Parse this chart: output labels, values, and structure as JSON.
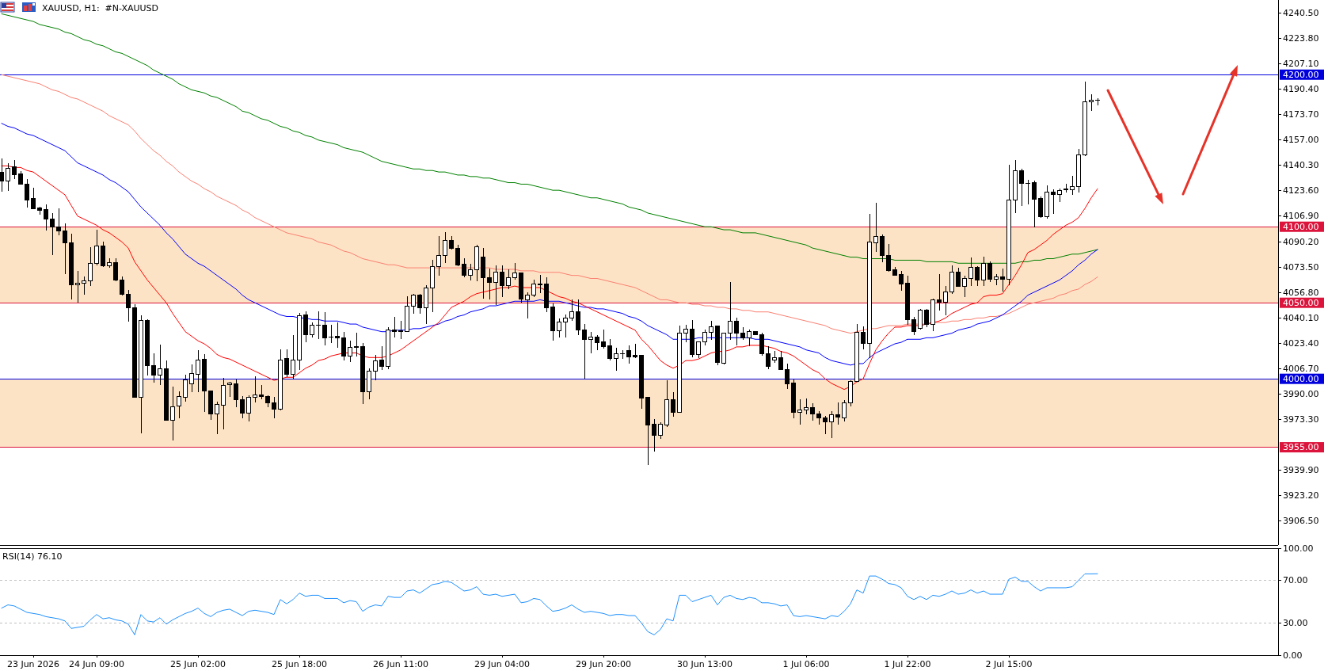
{
  "chart_data": [
    {
      "type": "candlestick",
      "title": "XAUUSD, H1:  #N-XAUUSD",
      "categories": [
        null,
        null,
        null,
        null,
        null,
        null,
        null,
        null,
        null,
        null,
        null,
        null,
        null,
        null,
        null,
        null,
        null,
        null,
        null,
        null,
        null,
        null,
        null,
        null,
        null,
        null,
        null,
        null,
        null,
        null,
        null,
        null,
        null,
        null,
        null,
        null,
        null,
        null,
        null,
        null,
        null,
        null,
        null,
        null,
        null,
        null,
        null,
        null,
        null,
        null,
        null,
        null,
        null,
        null,
        null,
        null,
        null,
        null,
        null,
        null,
        null,
        null,
        null,
        null,
        null,
        null,
        null,
        null,
        null,
        null,
        null,
        null,
        null,
        null,
        null,
        null,
        null,
        null,
        null,
        null,
        null,
        null,
        null,
        null,
        null,
        null,
        null,
        null,
        null,
        null,
        null,
        null,
        null,
        null,
        null,
        null,
        null,
        null,
        null,
        null,
        null,
        null,
        null,
        null,
        null,
        null,
        null,
        null,
        null,
        null,
        null,
        null,
        null,
        null,
        null,
        null,
        null,
        null,
        null,
        null,
        null,
        null,
        null,
        null,
        null,
        null,
        null,
        null,
        null,
        null,
        null,
        null,
        null,
        null,
        null,
        null,
        null,
        null,
        null,
        null,
        null,
        null,
        null,
        null,
        null,
        null,
        null,
        null,
        null,
        null,
        null,
        null,
        null,
        null,
        null,
        null,
        null,
        null,
        null,
        null,
        null,
        null,
        null,
        null,
        null,
        null,
        null,
        null,
        null,
        null,
        null,
        null,
        null,
        null
      ],
      "ylim": [
        3890.7,
        4249.1
      ],
      "yticks": [
        {
          "value": 4240.5,
          "label": "4240.50"
        },
        {
          "value": 4223.8,
          "label": "4223.80"
        },
        {
          "value": 4207.1,
          "label": "4207.10"
        },
        {
          "value": 4190.4,
          "label": "4190.40"
        },
        {
          "value": 4173.7,
          "label": "4173.70"
        },
        {
          "value": 4157,
          "label": "4157.00"
        },
        {
          "value": 4140.3,
          "label": "4140.30"
        },
        {
          "value": 4123.6,
          "label": "4123.60"
        },
        {
          "value": 4106.9,
          "label": "4106.90"
        },
        {
          "value": 4090.2,
          "label": "4090.20"
        },
        {
          "value": 4073.5,
          "label": "4073.50"
        },
        {
          "value": 4056.8,
          "label": "4056.80"
        },
        {
          "value": 4040.1,
          "label": "4040.10"
        },
        {
          "value": 4023.4,
          "label": "4023.40"
        },
        {
          "value": 4006.7,
          "label": "4006.70"
        },
        {
          "value": 3990,
          "label": "3990.00"
        },
        {
          "value": 3973.3,
          "label": "3973.30"
        },
        {
          "value": 3939.9,
          "label": "3939.90"
        },
        {
          "value": 3923.2,
          "label": "3923.20"
        },
        {
          "value": 3906.5,
          "label": "3906.50"
        }
      ],
      "bands": [
        {
          "axis": "y",
          "from": 4050,
          "to": 4100,
          "color": "#fde3c5"
        },
        {
          "axis": "y",
          "from": 3955,
          "to": 4000,
          "color": "#fde3c5"
        }
      ],
      "ref_lines": [
        {
          "axis": "y",
          "value": 4200,
          "label": "4200.00",
          "color": "#0000dd"
        },
        {
          "axis": "y",
          "value": 4100,
          "label": "4100.00",
          "color": "#dc143c"
        },
        {
          "axis": "y",
          "value": 4050,
          "label": "4050.00",
          "color": "#dc143c"
        },
        {
          "axis": "y",
          "value": 4000,
          "label": "4000.00",
          "color": "#0000dd"
        },
        {
          "axis": "y",
          "value": 3955,
          "label": "3955.00",
          "color": "#dc143c"
        }
      ],
      "series": [
        {
          "type": "line",
          "color": "#008000",
          "values": [
            4240,
            4239,
            4238,
            4237,
            4236,
            4235,
            4233,
            4232,
            4231,
            4230,
            4228,
            4227,
            4225,
            4223,
            4222,
            4220,
            4219,
            4217,
            4215,
            4214,
            4212,
            4210,
            4208,
            4206,
            4203,
            4201,
            4199,
            4197,
            4194,
            4192,
            4190,
            4189,
            4188,
            4186,
            4185,
            4183,
            4181,
            4179,
            4176,
            4175,
            4173,
            4171,
            4170,
            4168,
            4166,
            4165,
            4163,
            4162,
            4160,
            4159,
            4157,
            4156,
            4155,
            4154,
            4152,
            4151,
            4150,
            4149,
            4147,
            4145,
            4143,
            4142,
            4141,
            4140,
            4139,
            4138,
            4138,
            4137,
            4137,
            4136,
            4136,
            4135,
            4134,
            4134,
            4133,
            4133,
            4132,
            4132,
            4131,
            4130,
            4129,
            4129,
            4128,
            4128,
            4127,
            4126,
            4125,
            4124,
            4124,
            4123,
            4122,
            4121,
            4120,
            4119,
            4119,
            4118,
            4117,
            4116,
            4115,
            4113,
            4112,
            4111,
            4109,
            4108,
            4107,
            4106,
            4105,
            4104,
            4103,
            4102,
            4101,
            4100,
            4100,
            4099,
            4098,
            4098,
            4097,
            4096,
            4096,
            4096,
            4095,
            4094,
            4093,
            4092,
            4091,
            4090,
            4089,
            4088,
            4086,
            4085,
            4084,
            4083,
            4082,
            4081,
            4080,
            4080,
            4079,
            4079,
            4079,
            4079,
            4079,
            4078,
            4078,
            4078,
            4078,
            4078,
            4077,
            4077,
            4077,
            4077,
            4077,
            4076,
            4076,
            4076,
            4076,
            4076,
            4076,
            4076,
            4076,
            4076,
            4076,
            4077,
            4077,
            4078,
            4078,
            4079,
            4079,
            4080,
            4081,
            4082,
            4082,
            4083,
            4084,
            4085
          ]
        },
        {
          "type": "line",
          "color": "#fa8072",
          "values": [
            4200,
            4199,
            4198,
            4197,
            4196,
            4195,
            4194,
            4192,
            4190,
            4189,
            4187,
            4185,
            4184,
            4182,
            4180,
            4178,
            4176,
            4173,
            4171,
            4169,
            4167,
            4163,
            4158,
            4154,
            4150,
            4147,
            4143,
            4140,
            4136,
            4133,
            4130,
            4128,
            4125,
            4123,
            4120,
            4118,
            4116,
            4114,
            4111,
            4109,
            4106,
            4104,
            4102,
            4100,
            4098,
            4096,
            4095,
            4094,
            4093,
            4092,
            4090,
            4089,
            4088,
            4086,
            4084,
            4083,
            4081,
            4079,
            4078,
            4077,
            4076,
            4075,
            4075,
            4074,
            4073,
            4073,
            4073,
            4073,
            4073,
            4073,
            4073,
            4073,
            4073,
            4073,
            4073,
            4073,
            4073,
            4073,
            4072,
            4072,
            4072,
            4072,
            4071,
            4071,
            4071,
            4070,
            4070,
            4070,
            4070,
            4069,
            4068,
            4068,
            4067,
            4066,
            4066,
            4065,
            4064,
            4063,
            4062,
            4061,
            4060,
            4058,
            4056,
            4054,
            4052,
            4052,
            4051,
            4050,
            4050,
            4049,
            4049,
            4048,
            4048,
            4047,
            4047,
            4046,
            4046,
            4045,
            4045,
            4044,
            4044,
            4044,
            4043,
            4042,
            4041,
            4040,
            4039,
            4038,
            4037,
            4036,
            4035,
            4033,
            4032,
            4031,
            4030,
            4031,
            4032,
            4033,
            4033,
            4034,
            4035,
            4035,
            4035,
            4036,
            4036,
            4036,
            4036,
            4037,
            4037,
            4037,
            4038,
            4038,
            4039,
            4039,
            4040,
            4040,
            4041,
            4041,
            4042,
            4043,
            4045,
            4047,
            4049,
            4050,
            4051,
            4052,
            4053,
            4055,
            4056,
            4058,
            4059,
            4062,
            4064,
            4067
          ]
        },
        {
          "type": "line",
          "color": "#0000ff",
          "values": [
            4168,
            4166,
            4165,
            4163,
            4161,
            4160,
            4158,
            4156,
            4154,
            4152,
            4150,
            4146,
            4142,
            4140,
            4138,
            4136,
            4134,
            4131,
            4129,
            4126,
            4123,
            4118,
            4113,
            4109,
            4105,
            4101,
            4096,
            4092,
            4087,
            4082,
            4079,
            4076,
            4074,
            4071,
            4068,
            4065,
            4062,
            4059,
            4055,
            4052,
            4050,
            4048,
            4046,
            4044,
            4042,
            4041,
            4041,
            4040,
            4040,
            4039,
            4039,
            4038,
            4038,
            4038,
            4037,
            4036,
            4036,
            4034,
            4033,
            4032,
            4031,
            4031,
            4032,
            4032,
            4032,
            4033,
            4033,
            4034,
            4035,
            4036,
            4038,
            4039,
            4041,
            4042,
            4044,
            4045,
            4046,
            4048,
            4048,
            4049,
            4050,
            4051,
            4051,
            4051,
            4051,
            4052,
            4051,
            4051,
            4051,
            4050,
            4049,
            4048,
            4047,
            4047,
            4046,
            4046,
            4045,
            4044,
            4043,
            4041,
            4040,
            4038,
            4035,
            4033,
            4031,
            4029,
            4026,
            4026,
            4026,
            4026,
            4027,
            4027,
            4027,
            4027,
            4027,
            4027,
            4027,
            4027,
            4027,
            4026,
            4026,
            4026,
            4025,
            4024,
            4023,
            4022,
            4021,
            4019,
            4018,
            4017,
            4014,
            4012,
            4011,
            4010,
            4009,
            4010,
            4010,
            4014,
            4017,
            4019,
            4021,
            4023,
            4024,
            4026,
            4026,
            4026,
            4027,
            4027,
            4028,
            4029,
            4030,
            4032,
            4033,
            4034,
            4036,
            4037,
            4038,
            4040,
            4042,
            4045,
            4048,
            4051,
            4055,
            4057,
            4059,
            4061,
            4063,
            4065,
            4068,
            4071,
            4075,
            4078,
            4082,
            4085
          ]
        },
        {
          "type": "line",
          "color": "#ff0000",
          "values": [
            4140,
            4140,
            4139,
            4139,
            4137,
            4136,
            4133,
            4130,
            4127,
            4124,
            4121,
            4114,
            4107,
            4105,
            4103,
            4101,
            4098,
            4096,
            4093,
            4090,
            4086,
            4077,
            4071,
            4065,
            4060,
            4055,
            4050,
            4043,
            4037,
            4031,
            4028,
            4025,
            4023,
            4020,
            4016,
            4014,
            4013,
            4011,
            4009,
            4007,
            4005,
            4003,
            4001,
            3999,
            4000,
            4001,
            4001,
            4004,
            4007,
            4009,
            4012,
            4013,
            4015,
            4016,
            4017,
            4017,
            4017,
            4015,
            4014,
            4014,
            4014,
            4015,
            4017,
            4019,
            4022,
            4025,
            4028,
            4031,
            4034,
            4037,
            4042,
            4047,
            4049,
            4051,
            4054,
            4056,
            4057,
            4058,
            4059,
            4060,
            4060,
            4061,
            4060,
            4060,
            4060,
            4060,
            4058,
            4056,
            4054,
            4053,
            4051,
            4050,
            4048,
            4046,
            4044,
            4042,
            4040,
            4038,
            4036,
            4034,
            4032,
            4026,
            4022,
            4017,
            4012,
            4009,
            4007,
            4009,
            4012,
            4012,
            4013,
            4015,
            4017,
            4018,
            4018,
            4019,
            4021,
            4021,
            4022,
            4022,
            4022,
            4021,
            4020,
            4018,
            4017,
            4015,
            4012,
            4009,
            4006,
            4004,
            4000,
            3997,
            3995,
            3993,
            3995,
            3998,
            4000,
            4010,
            4019,
            4025,
            4030,
            4034,
            4034,
            4035,
            4035,
            4035,
            4036,
            4037,
            4038,
            4040,
            4043,
            4045,
            4047,
            4049,
            4050,
            4054,
            4055,
            4055,
            4056,
            4062,
            4068,
            4075,
            4083,
            4085,
            4088,
            4091,
            4095,
            4098,
            4101,
            4103,
            4106,
            4112,
            4119,
            4125
          ]
        }
      ],
      "ohlc": [
        [
          4135.8,
          4145.0,
          4123.0,
          4130.0
        ],
        [
          4130.0,
          4141.9,
          4123.4,
          4138.6
        ],
        [
          4139.5,
          4144.0,
          4131.6,
          4134.1
        ],
        [
          4134.5,
          4136.8,
          4127.5,
          4127.9
        ],
        [
          4127.9,
          4131.2,
          4112.7,
          4117.6
        ],
        [
          4118.7,
          4125.9,
          4111.5,
          4111.9
        ],
        [
          4112.3,
          4113.1,
          4108.0,
          4110.6
        ],
        [
          4111.5,
          4114.8,
          4097.7,
          4104.9
        ],
        [
          4104.9,
          4109.0,
          4081.2,
          4099.9
        ],
        [
          4099.9,
          4112.1,
          4094.2,
          4097.5
        ],
        [
          4097.5,
          4102.4,
          4068.8,
          4089.2
        ],
        [
          4089.2,
          4095.6,
          4052.3,
          4061.6
        ],
        [
          4061.6,
          4070.9,
          4050.3,
          4062.9
        ],
        [
          4062.9,
          4067.4,
          4055.4,
          4064.5
        ],
        [
          4064.5,
          4086.7,
          4061.2,
          4076.0
        ],
        [
          4076.0,
          4098.1,
          4074.4,
          4087.4
        ],
        [
          4087.4,
          4090.4,
          4073.6,
          4074.4
        ],
        [
          4074.4,
          4079.1,
          4072.9,
          4076.4
        ],
        [
          4076.4,
          4079.1,
          4064.3,
          4064.7
        ],
        [
          4064.7,
          4067.2,
          4055.0,
          4055.4
        ],
        [
          4055.4,
          4058.5,
          4037.5,
          4046.8
        ],
        [
          4046.8,
          4049.3,
          3987.5,
          3987.9
        ],
        [
          3987.9,
          4042.0,
          3964.4,
          4038.5
        ],
        [
          4038.5,
          4039.4,
          4002.3,
          4008.5
        ],
        [
          4008.5,
          4016.7,
          3997.3,
          4002.7
        ],
        [
          4002.7,
          4022.5,
          3995.7,
          4006.8
        ],
        [
          4006.8,
          4012.2,
          3972.6,
          3973.0
        ],
        [
          3973.0,
          3994.7,
          3959.6,
          3981.7
        ],
        [
          3982.3,
          3991.6,
          3974.1,
          3988.5
        ],
        [
          3987.9,
          4002.9,
          3985.0,
          3999.4
        ],
        [
          3996.5,
          4009.5,
          3991.2,
          4003.3
        ],
        [
          4003.0,
          4018.8,
          3991.2,
          4012.2
        ],
        [
          4013.0,
          4016.3,
          3978.2,
          3992.0
        ],
        [
          3992.0,
          3992.4,
          3973.0,
          3976.7
        ],
        [
          3977.1,
          3985.0,
          3963.8,
          3983.3
        ],
        [
          3982.9,
          4000.8,
          3966.9,
          3995.7
        ],
        [
          3996.1,
          3998.2,
          3987.9,
          3997.1
        ],
        [
          3996.5,
          3999.8,
          3981.3,
          3986.4
        ],
        [
          3986.4,
          3988.5,
          3974.1,
          3977.6
        ],
        [
          3977.6,
          3989.1,
          3972.0,
          3987.9
        ],
        [
          3987.9,
          4001.9,
          3984.4,
          3989.5
        ],
        [
          3989.5,
          3995.7,
          3986.4,
          3988.3
        ],
        [
          3988.5,
          3989.1,
          3981.3,
          3984.4
        ],
        [
          3984.4,
          3987.9,
          3974.1,
          3980.3
        ],
        [
          3980.3,
          4019.4,
          3979.2,
          4012.5
        ],
        [
          4013.2,
          4019.3,
          4001.1,
          4002.8
        ],
        [
          4002.8,
          4028.8,
          3999.7,
          4012.2
        ],
        [
          4012.2,
          4043.1,
          4005.9,
          4041.3
        ],
        [
          4041.8,
          4044.5,
          4023.9,
          4028.8
        ],
        [
          4028.8,
          4037.2,
          4027.1,
          4035.2
        ],
        [
          4035.4,
          4044.5,
          4026.2,
          4035.2
        ],
        [
          4035.2,
          4043.9,
          4021.9,
          4026.8
        ],
        [
          4027.4,
          4035.4,
          4023.6,
          4027.2
        ],
        [
          4028.0,
          4037.2,
          4020.2,
          4026.8
        ],
        [
          4026.8,
          4030.9,
          4012.3,
          4014.9
        ],
        [
          4014.9,
          4025.0,
          4011.1,
          4020.5
        ],
        [
          4021.4,
          4030.2,
          4014.6,
          4020.5
        ],
        [
          4021.0,
          4023.6,
          3983.3,
          3991.3
        ],
        [
          3991.3,
          4007.1,
          3986.8,
          4004.9
        ],
        [
          4004.9,
          4015.8,
          3999.0,
          4011.8
        ],
        [
          4012.2,
          4021.5,
          4005.9,
          4008.4
        ],
        [
          4008.4,
          4033.7,
          4006.6,
          4032.3
        ],
        [
          4032.3,
          4040.6,
          4027.1,
          4030.9
        ],
        [
          4031.4,
          4038.2,
          4026.2,
          4031.1
        ],
        [
          4031.2,
          4054.5,
          4030.6,
          4047.6
        ],
        [
          4047.6,
          4055.6,
          4042.7,
          4054.9
        ],
        [
          4054.9,
          4055.9,
          4042.7,
          4046.5
        ],
        [
          4046.5,
          4061.8,
          4035.8,
          4059.5
        ],
        [
          4059.5,
          4078.1,
          4043.9,
          4073.6
        ],
        [
          4074.0,
          4093.8,
          4067.9,
          4080.9
        ],
        [
          4080.9,
          4096.5,
          4076.1,
          4090.8
        ],
        [
          4090.8,
          4094.1,
          4085.1,
          4085.6
        ],
        [
          4085.6,
          4088.2,
          4074.0,
          4074.8
        ],
        [
          4075.2,
          4079.5,
          4067.0,
          4067.9
        ],
        [
          4067.9,
          4075.4,
          4064.8,
          4071.9
        ],
        [
          4071.9,
          4088.2,
          4064.4,
          4087.0
        ],
        [
          4079.9,
          4085.8,
          4052.6,
          4066.7
        ],
        [
          4066.7,
          4072.6,
          4052.1,
          4063.2
        ],
        [
          4063.2,
          4074.8,
          4048.8,
          4070.0
        ],
        [
          4070.0,
          4074.7,
          4054.0,
          4061.5
        ],
        [
          4061.5,
          4072.2,
          4059.0,
          4066.7
        ],
        [
          4066.7,
          4076.4,
          4065.3,
          4069.5
        ],
        [
          4069.5,
          4069.8,
          4050.3,
          4052.6
        ],
        [
          4052.1,
          4056.9,
          4039.6,
          4054.9
        ],
        [
          4054.9,
          4065.3,
          4054.0,
          4062.5
        ],
        [
          4062.5,
          4068.2,
          4056.3,
          4061.8
        ],
        [
          4062.2,
          4067.0,
          4043.6,
          4046.9
        ],
        [
          4047.1,
          4049.7,
          4025.0,
          4031.8
        ],
        [
          4031.8,
          4039.9,
          4027.4,
          4037.2
        ],
        [
          4037.2,
          4042.4,
          4027.4,
          4039.9
        ],
        [
          4039.9,
          4052.4,
          4037.9,
          4043.9
        ],
        [
          4043.9,
          4052.1,
          4028.8,
          4032.3
        ],
        [
          4032.3,
          4035.8,
          4000.2,
          4025.7
        ],
        [
          4025.7,
          4030.9,
          4016.7,
          4027.4
        ],
        [
          4027.4,
          4028.8,
          4018.8,
          4024.0
        ],
        [
          4024.3,
          4032.6,
          4019.8,
          4021.4
        ],
        [
          4021.5,
          4026.0,
          4012.2,
          4013.6
        ],
        [
          4013.6,
          4020.2,
          4005.2,
          4016.3
        ],
        [
          4016.7,
          4019.1,
          4012.9,
          4016.5
        ],
        [
          4018.4,
          4022.2,
          4010.1,
          4014.6
        ],
        [
          4015.6,
          4022.8,
          4013.6,
          4014.6
        ],
        [
          4015.6,
          4015.9,
          3980.2,
          3987.5
        ],
        [
          3987.9,
          3988.2,
          3943.4,
          3969.8
        ],
        [
          3970.2,
          3973.6,
          3952.4,
          3962.9
        ],
        [
          3962.9,
          3971.5,
          3960.3,
          3970.2
        ],
        [
          3969.8,
          3999.0,
          3968.4,
          3986.3
        ],
        [
          3986.3,
          3991.5,
          3975.3,
          3978.1
        ],
        [
          3978.1,
          4034.9,
          3977.8,
          4030.1
        ],
        [
          4029.9,
          4035.4,
          4024.0,
          4032.6
        ],
        [
          4032.6,
          4038.4,
          4014.1,
          4015.8
        ],
        [
          4015.8,
          4024.5,
          4013.6,
          4024.3
        ],
        [
          4024.5,
          4032.3,
          4021.9,
          4030.6
        ],
        [
          4030.6,
          4037.9,
          4025.7,
          4034.0
        ],
        [
          4034.7,
          4034.9,
          4008.9,
          4010.6
        ],
        [
          4010.1,
          4030.2,
          4009.4,
          4030.1
        ],
        [
          4030.1,
          4063.9,
          4025.7,
          4037.9
        ],
        [
          4037.9,
          4040.1,
          4022.2,
          4030.1
        ],
        [
          4030.1,
          4034.0,
          4025.7,
          4027.1
        ],
        [
          4027.1,
          4032.6,
          4021.5,
          4031.1
        ],
        [
          4031.1,
          4031.4,
          4028.5,
          4028.8
        ],
        [
          4028.8,
          4030.2,
          4015.3,
          4016.3
        ],
        [
          4016.3,
          4021.4,
          4006.6,
          4008.0
        ],
        [
          4012.2,
          4018.4,
          4010.4,
          4013.7
        ],
        [
          4013.7,
          4018.1,
          4005.6,
          4005.9
        ],
        [
          4005.9,
          4010.1,
          3993.2,
          3996.9
        ],
        [
          3997.2,
          3999.7,
          3974.1,
          3978.1
        ],
        [
          3978.1,
          3986.3,
          3970.1,
          3979.3
        ],
        [
          3979.3,
          3987.2,
          3976.7,
          3981.1
        ],
        [
          3981.1,
          3983.7,
          3972.4,
          3976.7
        ],
        [
          3977.1,
          3978.8,
          3969.8,
          3974.1
        ],
        [
          3974.5,
          3975.4,
          3963.7,
          3971.9
        ],
        [
          3971.9,
          3978.5,
          3960.8,
          3976.2
        ],
        [
          3976.2,
          3984.6,
          3969.8,
          3974.7
        ],
        [
          3974.5,
          3986.1,
          3972.2,
          3984.4
        ],
        [
          3984.4,
          3999.1,
          3981.8,
          3998.3
        ],
        [
          3998.3,
          4035.9,
          3997.8,
          4030.7
        ],
        [
          4030.7,
          4034.4,
          4019.6,
          4023.1
        ],
        [
          4023.1,
          4108.5,
          4013.4,
          4090.1
        ],
        [
          4089.4,
          4115.8,
          4083.3,
          4093.8
        ],
        [
          4093.8,
          4095.0,
          4076.9,
          4081.1
        ],
        [
          4081.3,
          4088.5,
          4070.3,
          4071.2
        ],
        [
          4071.5,
          4073.8,
          4067.7,
          4068.1
        ],
        [
          4068.6,
          4070.7,
          4057.8,
          4062.4
        ],
        [
          4062.7,
          4067.7,
          4035.6,
          4039.1
        ],
        [
          4039.1,
          4040.5,
          4028.6,
          4031.3
        ],
        [
          4033.0,
          4046.0,
          4032.5,
          4045.1
        ],
        [
          4045.1,
          4046.0,
          4033.8,
          4035.6
        ],
        [
          4035.6,
          4052.9,
          4031.3,
          4052.1
        ],
        [
          4052.1,
          4068.9,
          4045.1,
          4050.3
        ],
        [
          4050.3,
          4061.3,
          4041.7,
          4057.3
        ],
        [
          4057.3,
          4074.7,
          4055.6,
          4070.3
        ],
        [
          4070.3,
          4072.9,
          4060.5,
          4060.8
        ],
        [
          4060.8,
          4067.7,
          4053.8,
          4066.0
        ],
        [
          4066.0,
          4079.9,
          4061.3,
          4073.4
        ],
        [
          4073.4,
          4074.1,
          4060.8,
          4064.8
        ],
        [
          4064.8,
          4080.4,
          4061.3,
          4075.9
        ],
        [
          4075.9,
          4077.3,
          4063.8,
          4065.5
        ],
        [
          4065.5,
          4068.9,
          4061.6,
          4066.9
        ],
        [
          4066.9,
          4072.4,
          4057.3,
          4065.5
        ],
        [
          4065.5,
          4140.6,
          4061.6,
          4117.7
        ],
        [
          4117.7,
          4143.7,
          4109.2,
          4137.1
        ],
        [
          4137.1,
          4138.4,
          4113.7,
          4128.5
        ],
        [
          4128.6,
          4131.1,
          4114.9,
          4128.3
        ],
        [
          4128.8,
          4130.2,
          4099.8,
          4118.1
        ],
        [
          4118.4,
          4119.8,
          4105.9,
          4106.4
        ],
        [
          4106.4,
          4127.3,
          4105.4,
          4122.9
        ],
        [
          4122.9,
          4124.7,
          4108.2,
          4121.2
        ],
        [
          4121.2,
          4125.0,
          4116.3,
          4124.0
        ],
        [
          4124.7,
          4128.0,
          4122.4,
          4124.5
        ],
        [
          4124.5,
          4133.7,
          4121.0,
          4126.2
        ],
        [
          4126.2,
          4151.4,
          4122.4,
          4147.4
        ],
        [
          4147.4,
          4195.7,
          4146.7,
          4182.3
        ],
        [
          4182.3,
          4187.0,
          4176.2,
          4183.2
        ],
        [
          4183.2,
          4184.6,
          4179.7,
          4183.0
        ]
      ]
    },
    {
      "type": "line",
      "title": "RSI(14) 76.10",
      "color": "#1e90ff",
      "categories": [
        null,
        null,
        null,
        null,
        null,
        "23 Jun 2026",
        null,
        null,
        null,
        null,
        null,
        null,
        null,
        null,
        null,
        "24 Jun 09:00",
        null,
        null,
        null,
        null,
        null,
        null,
        null,
        null,
        null,
        null,
        null,
        null,
        null,
        null,
        null,
        "25 Jun 02:00",
        null,
        null,
        null,
        null,
        null,
        null,
        null,
        null,
        null,
        null,
        null,
        null,
        null,
        null,
        null,
        "25 Jun 18:00",
        null,
        null,
        null,
        null,
        null,
        null,
        null,
        null,
        null,
        null,
        null,
        null,
        null,
        null,
        null,
        "26 Jun 11:00",
        null,
        null,
        null,
        null,
        null,
        null,
        null,
        null,
        null,
        null,
        null,
        null,
        null,
        null,
        null,
        "29 Jun 04:00",
        null,
        null,
        null,
        null,
        null,
        null,
        null,
        null,
        null,
        null,
        null,
        null,
        null,
        null,
        null,
        "29 Jun 20:00",
        null,
        null,
        null,
        null,
        null,
        null,
        null,
        null,
        null,
        null,
        null,
        null,
        null,
        null,
        null,
        "30 Jun 13:00",
        null,
        null,
        null,
        null,
        null,
        null,
        null,
        null,
        null,
        null,
        null,
        null,
        null,
        null,
        null,
        "1 Jul 06:00",
        null,
        null,
        null,
        null,
        null,
        null,
        null,
        null,
        null,
        null,
        null,
        null,
        null,
        null,
        null,
        "1 Jul 22:00",
        null,
        null,
        null,
        null,
        null,
        null,
        null,
        null,
        null,
        null,
        null,
        null,
        null,
        null,
        null,
        "2 Jul 15:00",
        null,
        null,
        null,
        null,
        null,
        null,
        null,
        null,
        null,
        null,
        null,
        null,
        null,
        null
      ],
      "ylim": [
        0,
        100
      ],
      "yticks": [
        {
          "value": 100,
          "label": "100.00"
        },
        {
          "value": 70,
          "label": "70.00"
        },
        {
          "value": 30,
          "label": "30.00"
        },
        {
          "value": 0,
          "label": "0.00"
        }
      ],
      "ref_lines": [
        {
          "axis": "y",
          "value": 70,
          "color": "#c0c0c0",
          "line_style": "dashed"
        },
        {
          "axis": "y",
          "value": 30,
          "color": "#c0c0c0",
          "line_style": "dashed"
        }
      ],
      "values": [
        44,
        47,
        46,
        43,
        40,
        39,
        38,
        36,
        35,
        34,
        32,
        25,
        26,
        27,
        33,
        38,
        34,
        35,
        33,
        32,
        29,
        19,
        38,
        32,
        31,
        35,
        29,
        33,
        36,
        39,
        41,
        44,
        39,
        36,
        40,
        42,
        43,
        40,
        37,
        41,
        42,
        41,
        40,
        38,
        52,
        48,
        52,
        58,
        55,
        56,
        56,
        53,
        53,
        53,
        49,
        51,
        50,
        41,
        45,
        47,
        46,
        55,
        54,
        54,
        60,
        61,
        58,
        62,
        66,
        67,
        69,
        68,
        64,
        60,
        61,
        64,
        57,
        56,
        57,
        55,
        56,
        57,
        49,
        50,
        53,
        52,
        46,
        41,
        42,
        44,
        47,
        43,
        40,
        41,
        40,
        39,
        37,
        38,
        38,
        37,
        37,
        30,
        22,
        19,
        24,
        34,
        32,
        56,
        56,
        50,
        52,
        54,
        56,
        47,
        54,
        56,
        53,
        52,
        54,
        53,
        49,
        49,
        48,
        46,
        47,
        37,
        36,
        37,
        36,
        35,
        34,
        37,
        36,
        41,
        48,
        61,
        58,
        74,
        74,
        71,
        67,
        66,
        63,
        55,
        52,
        55,
        52,
        56,
        55,
        57,
        60,
        57,
        58,
        61,
        58,
        60,
        57,
        57,
        57,
        71,
        73,
        69,
        69,
        64,
        60,
        63,
        63,
        63,
        63,
        64,
        70,
        76,
        76,
        76.1
      ]
    }
  ]
}
